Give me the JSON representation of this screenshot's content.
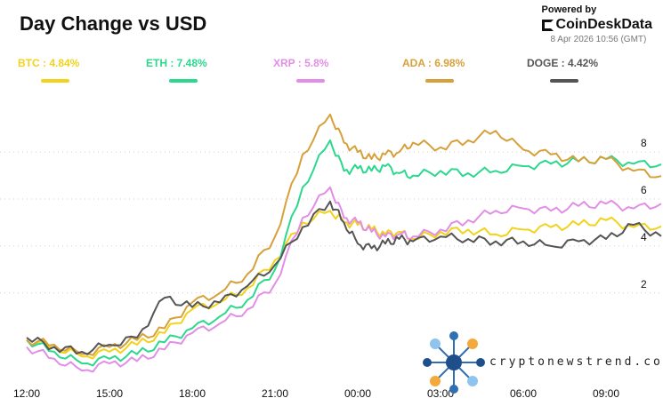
{
  "header": {
    "title": "Day Change vs USD",
    "powered_by": "Powered by",
    "brand": "CoinDeskData",
    "timestamp": "8 Apr 2026 10:56 (GMT)"
  },
  "watermark": {
    "text": "cryptonewstrend.com"
  },
  "chart_data": {
    "type": "line",
    "title": "Day Change vs USD",
    "xlabel": "",
    "ylabel": "",
    "x_ticks": [
      "12:00",
      "15:00",
      "18:00",
      "21:00",
      "00:00",
      "03:00",
      "06:00",
      "09:00"
    ],
    "y_ticks": [
      2,
      4,
      6,
      8
    ],
    "ylim": [
      -1.6,
      10.5
    ],
    "y_axis_side": "right",
    "grid": "dotted-horizontal",
    "legend_position": "top",
    "x_hours": [
      0,
      1,
      2,
      3,
      4,
      5,
      6,
      7,
      8,
      9,
      10,
      11,
      11.5,
      12,
      12.5,
      13,
      13.5,
      14,
      15,
      16,
      17,
      18,
      19,
      20,
      21,
      22,
      23
    ],
    "series": [
      {
        "name": "BTC",
        "label": "BTC : 4.84%",
        "color": "#f2d21b",
        "values": [
          0.0,
          -0.3,
          -0.7,
          -0.5,
          -0.2,
          0.3,
          1.3,
          1.6,
          2.2,
          3.4,
          5.0,
          5.5,
          5.0,
          4.9,
          4.7,
          4.5,
          4.6,
          4.3,
          4.6,
          4.7,
          4.5,
          4.7,
          4.8,
          4.9,
          5.1,
          4.8,
          4.84
        ]
      },
      {
        "name": "ETH",
        "label": "ETH : 7.48%",
        "color": "#2bd88e",
        "values": [
          0.0,
          -0.5,
          -1.0,
          -0.8,
          -0.6,
          -0.1,
          0.5,
          1.0,
          1.7,
          3.0,
          6.5,
          8.5,
          7.2,
          7.3,
          7.2,
          7.4,
          7.1,
          7.0,
          7.2,
          7.1,
          7.2,
          7.4,
          7.5,
          7.6,
          7.7,
          7.5,
          7.48
        ]
      },
      {
        "name": "XRP",
        "label": "XRP : 5.8%",
        "color": "#e28ee6",
        "values": [
          -0.3,
          -0.8,
          -1.3,
          -1.0,
          -0.9,
          -0.4,
          0.3,
          0.7,
          1.3,
          2.4,
          5.2,
          6.5,
          5.2,
          5.0,
          4.6,
          4.4,
          4.5,
          4.4,
          4.7,
          5.1,
          5.5,
          5.6,
          5.5,
          5.7,
          5.8,
          5.6,
          5.8
        ]
      },
      {
        "name": "ADA",
        "label": "ADA : 6.98%",
        "color": "#d6a13a",
        "values": [
          0.0,
          -0.2,
          -0.6,
          -0.3,
          0.0,
          0.5,
          1.6,
          2.0,
          2.8,
          4.4,
          7.9,
          9.6,
          8.4,
          8.0,
          7.7,
          7.9,
          8.0,
          8.4,
          8.2,
          8.5,
          8.9,
          8.1,
          7.9,
          7.6,
          7.7,
          7.2,
          6.98
        ]
      },
      {
        "name": "DOGE",
        "label": "DOGE : 4.42%",
        "color": "#555555",
        "values": [
          0.1,
          -0.3,
          -0.5,
          -0.2,
          0.1,
          1.8,
          1.4,
          1.6,
          2.3,
          3.2,
          4.8,
          5.9,
          5.0,
          4.1,
          3.9,
          4.1,
          4.3,
          4.2,
          4.4,
          4.3,
          4.2,
          4.2,
          4.0,
          4.2,
          4.3,
          4.9,
          4.42
        ]
      }
    ]
  }
}
